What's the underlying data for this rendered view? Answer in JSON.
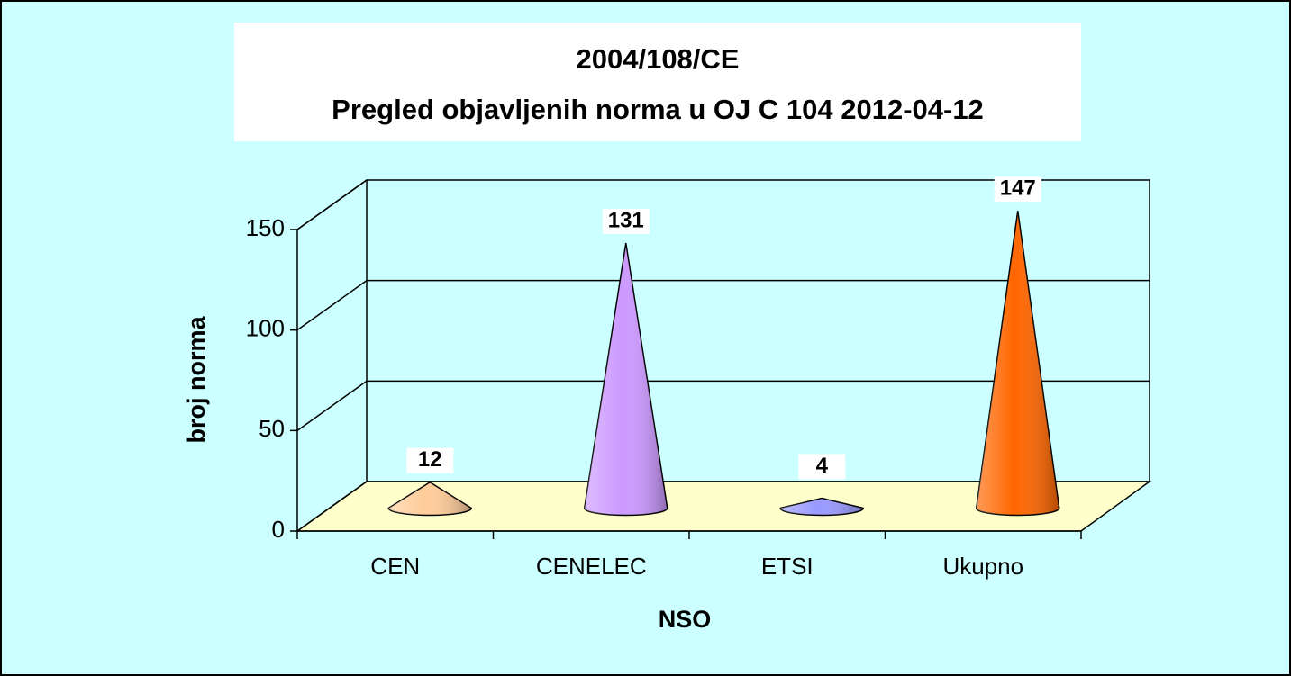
{
  "chart_data": {
    "type": "cone",
    "title": "2004/108/CE",
    "subtitle": "Pregled objavljenih norma u OJ C 104 2012-04-12",
    "x_label": "NSO",
    "y_label": "broj norma",
    "categories": [
      "CEN",
      "CENELEC",
      "ETSI",
      "Ukupno"
    ],
    "values": [
      12,
      131,
      4,
      147
    ],
    "colors": [
      "#ffcc99",
      "#cc99ff",
      "#9999ff",
      "#ff6600"
    ],
    "ylim": [
      0,
      150
    ],
    "yticks": [
      0,
      50,
      100,
      150
    ],
    "grid": true
  }
}
